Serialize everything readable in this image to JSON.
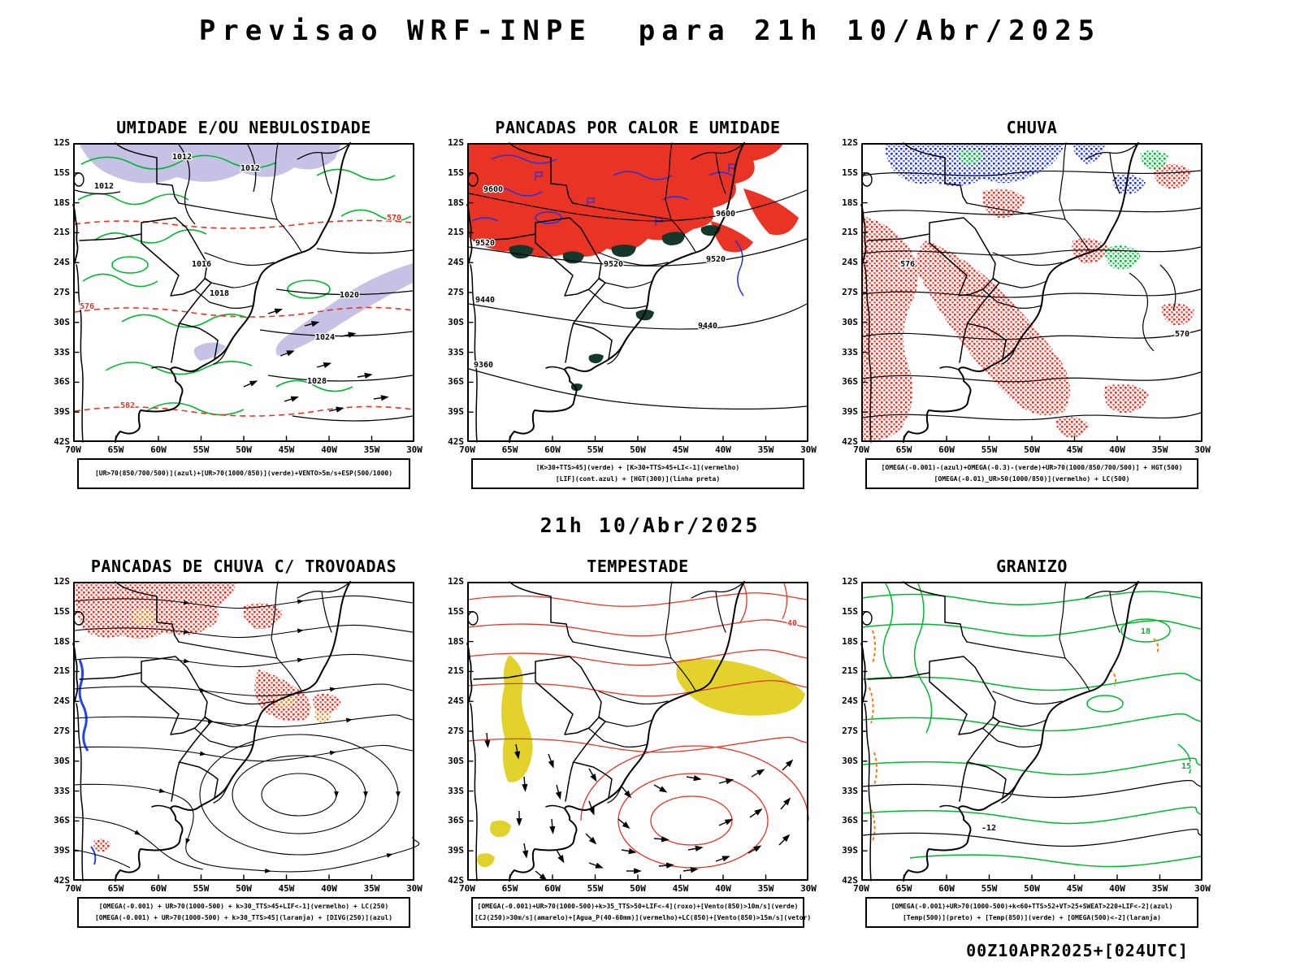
{
  "page": {
    "title": "Previsao WRF-INPE  para 21h 10/Abr/2025",
    "subtitle": "21h 10/Abr/2025",
    "footer": "00Z10APR2025+[024UTC]"
  },
  "axes": {
    "lat": [
      "12S",
      "15S",
      "18S",
      "21S",
      "24S",
      "27S",
      "30S",
      "33S",
      "36S",
      "39S",
      "42S"
    ],
    "lon": [
      "70W",
      "65W",
      "60W",
      "55W",
      "50W",
      "45W",
      "40W",
      "35W",
      "30W"
    ]
  },
  "panels": [
    {
      "id": "umidade",
      "title": "UMIDADE E/OU NEBULOSIDADE",
      "legend_lines": [
        "[UR>70(850/700/500)](azul)+[UR>70(1000/850)](verde)+VENTO>5m/s+ESP(500/1000)"
      ]
    },
    {
      "id": "pancadas-calor",
      "title": "PANCADAS POR CALOR E UMIDADE",
      "legend_lines": [
        "[K>30+TTS>45](verde) + [K>30+TTS>45+LI<-1](vermelho)",
        "[LIF](cont.azul) + [HGT(300)](linha preta)"
      ]
    },
    {
      "id": "chuva",
      "title": "CHUVA",
      "legend_lines": [
        "[OMEGA(-0.001)-(azul)+OMEGA(-0.3)-(verde)+UR>70(1000/850/700/500)] + HGT(500)",
        "[OMEGA(-0.01)_UR>50(1000/850)](vermelho) + LC(500)"
      ]
    },
    {
      "id": "trovoadas",
      "title": "PANCADAS DE CHUVA C/ TROVOADAS",
      "legend_lines": [
        "[OMEGA(-0.001) + UR>70(1000-500) + k>30_TTS>45+LIF<-1](vermelho) + LC(250)",
        "[OMEGA(-0.001) + UR>70(1000-500) + k>30_TTS>45](laranja) + [DIVG(250)](azul)"
      ]
    },
    {
      "id": "tempestade",
      "title": "TEMPESTADE",
      "legend_lines": [
        "[OMEGA(-0.001)+UR>70(1000-500)+k>35_TTS>50+LIF<-4](roxo)+[Vento(850)>10m/s](verde)",
        "[CJ(250)>30m/s](amarelo)+[Agua_P(40-60mm)](vermelho)+LC(850)+[Vento(850)>15m/s](vetor)"
      ]
    },
    {
      "id": "granizo",
      "title": "GRANIZO",
      "legend_lines": [
        "[OMEGA(-0.001)+UR>70(1000-500)+k<60+TTS>52+VT>25+SWEAT>220+LIF<-2](azul)",
        "[Temp(500)](preto) + [Temp(850)](verde) + [OMEGA(500)<-2](laranja)"
      ]
    }
  ],
  "map_labels": {
    "umidade": [
      "1012",
      "1012",
      "1012",
      "1016",
      "1018",
      "1020",
      "1024",
      "1028",
      "570",
      "576",
      "582"
    ],
    "pancadas": [
      "9600",
      "9600",
      "9520",
      "9520",
      "9520",
      "9440",
      "9440",
      "9360"
    ],
    "chuva": [
      "570",
      "576"
    ],
    "tempestade": [
      "40"
    ],
    "granizo": [
      "-12",
      "15",
      "18"
    ]
  },
  "colors": {
    "green_contour": "#00b830",
    "red": "#e83325",
    "blue": "#2233dd",
    "lavender": "#b3aede",
    "dark_green": "#14382b",
    "orange": "#f08018",
    "yellow": "#e0d020",
    "black": "#000000"
  }
}
